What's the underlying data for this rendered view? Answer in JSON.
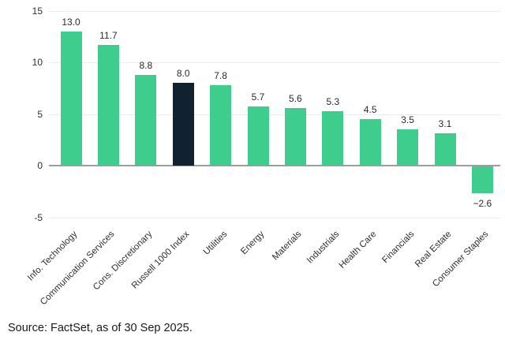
{
  "chart_data": {
    "type": "bar",
    "title": "",
    "xlabel": "",
    "ylabel": "",
    "categories": [
      "Info. Technology",
      "Communication Services",
      "Cons. Discretionary",
      "Russell 1000 Index",
      "Utilities",
      "Energy",
      "Materials",
      "Industrials",
      "Health Care",
      "Financials",
      "Real Estate",
      "Consumer Staples"
    ],
    "values": [
      13.0,
      11.7,
      8.8,
      8.0,
      7.8,
      5.7,
      5.6,
      5.3,
      4.5,
      3.5,
      3.1,
      -2.6
    ],
    "highlight_category": "Russell 1000 Index",
    "ylim": [
      -5,
      15
    ],
    "yticks": [
      15,
      10,
      5,
      0,
      -5
    ],
    "grid": "horizontal",
    "legend": "none",
    "colors": {
      "bar_default": "#3ecd8d",
      "bar_highlight": "#10222f",
      "gridline": "#ececec",
      "zero_line": "#9e9e9e",
      "tick_text": "#2e2e2e",
      "value_text": "#2b2b2b",
      "background": "#ffffff"
    }
  },
  "source_note": "Source: FactSet, as of 30 Sep 2025."
}
